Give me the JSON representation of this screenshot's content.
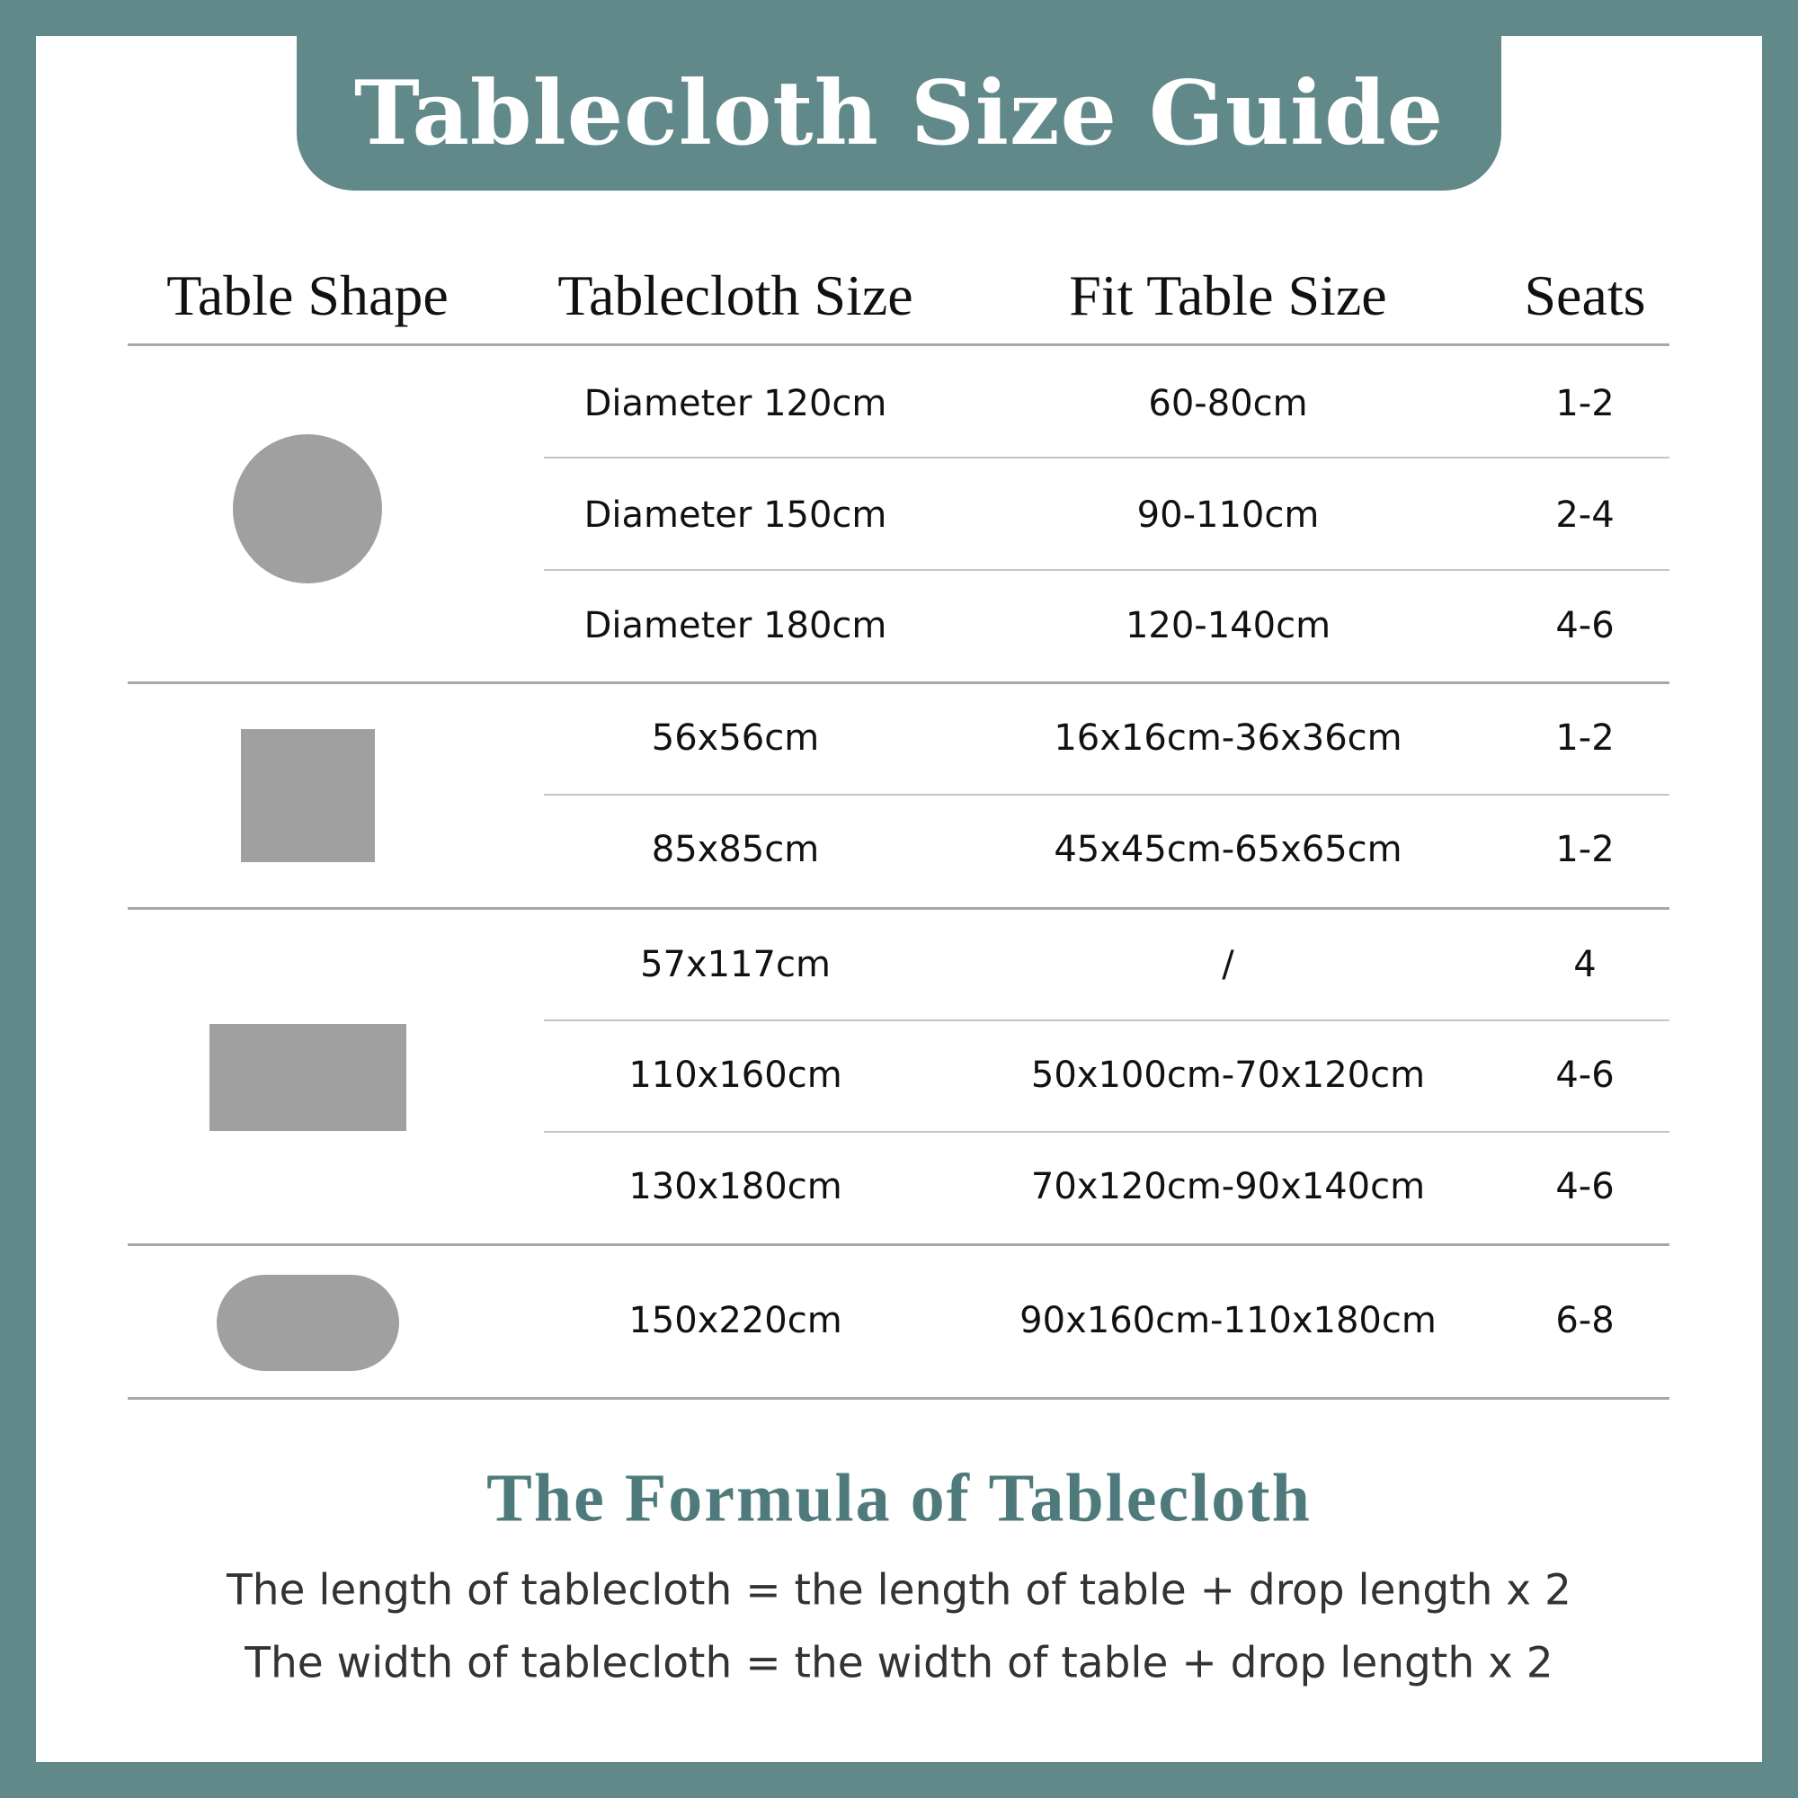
{
  "title": "Tablecloth Size Guide",
  "table": {
    "headers": [
      "Table Shape",
      "Tablecloth Size",
      "Fit Table Size",
      "Seats"
    ],
    "groups": [
      {
        "shape": "round",
        "rows": [
          {
            "size": "Diameter 120cm",
            "fit": "60-80cm",
            "seats": "1-2"
          },
          {
            "size": "Diameter 150cm",
            "fit": "90-110cm",
            "seats": "2-4"
          },
          {
            "size": "Diameter 180cm",
            "fit": "120-140cm",
            "seats": "4-6"
          }
        ]
      },
      {
        "shape": "square",
        "rows": [
          {
            "size": "56x56cm",
            "fit": "16x16cm-36x36cm",
            "seats": "1-2"
          },
          {
            "size": "85x85cm",
            "fit": "45x45cm-65x65cm",
            "seats": "1-2"
          }
        ]
      },
      {
        "shape": "rectangle",
        "rows": [
          {
            "size": "57x117cm",
            "fit": "/",
            "seats": "4"
          },
          {
            "size": "110x160cm",
            "fit": "50x100cm-70x120cm",
            "seats": "4-6"
          },
          {
            "size": "130x180cm",
            "fit": "70x120cm-90x140cm",
            "seats": "4-6"
          }
        ]
      },
      {
        "shape": "oval",
        "rows": [
          {
            "size": "150x220cm",
            "fit": "90x160cm-110x180cm",
            "seats": "6-8"
          }
        ]
      }
    ]
  },
  "formula": {
    "title": "The Formula of Tablecloth",
    "lines": [
      "The length of tablecloth = the length of table + drop length x 2",
      "The width of tablecloth = the width of table + drop length x 2"
    ]
  },
  "colors": {
    "accent": "#62898a",
    "shape": "#a0a0a0"
  }
}
